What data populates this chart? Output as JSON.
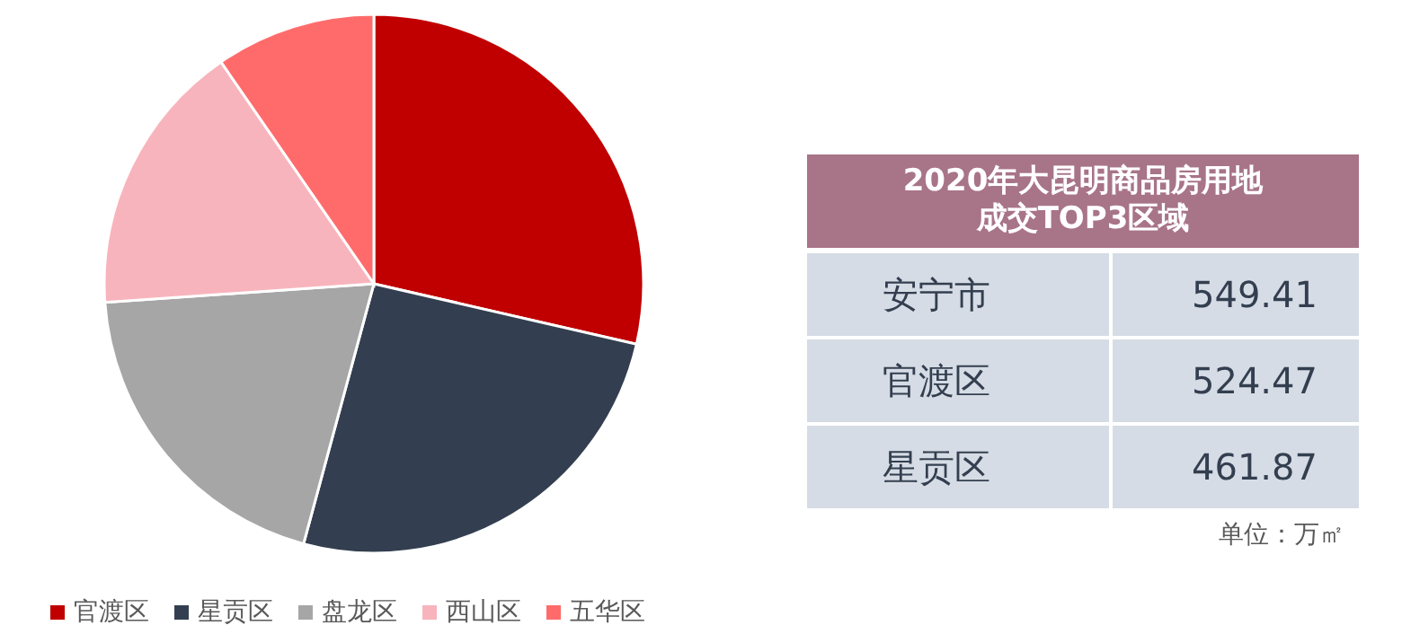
{
  "chart_data": [
    {
      "type": "pie",
      "categories": [
        "官渡区",
        "星贡区",
        "盘龙区",
        "西山区",
        "五华区"
      ],
      "values": [
        28.6,
        25.6,
        19.7,
        16.5,
        9.6
      ],
      "colors": [
        "#c00000",
        "#333f50",
        "#a6a6a6",
        "#f8b4bc",
        "#ff6b6b"
      ],
      "legend": "bottom left"
    },
    {
      "type": "other",
      "title": "2020年大昆明商品房用地成交TOP3区域",
      "categories": [
        "安宁市",
        "官渡区",
        "星贡区"
      ],
      "values": [
        549.41,
        524.47,
        461.87
      ],
      "data_labels": true,
      "annotations": [
        "单位：万㎡"
      ]
    }
  ]
}
